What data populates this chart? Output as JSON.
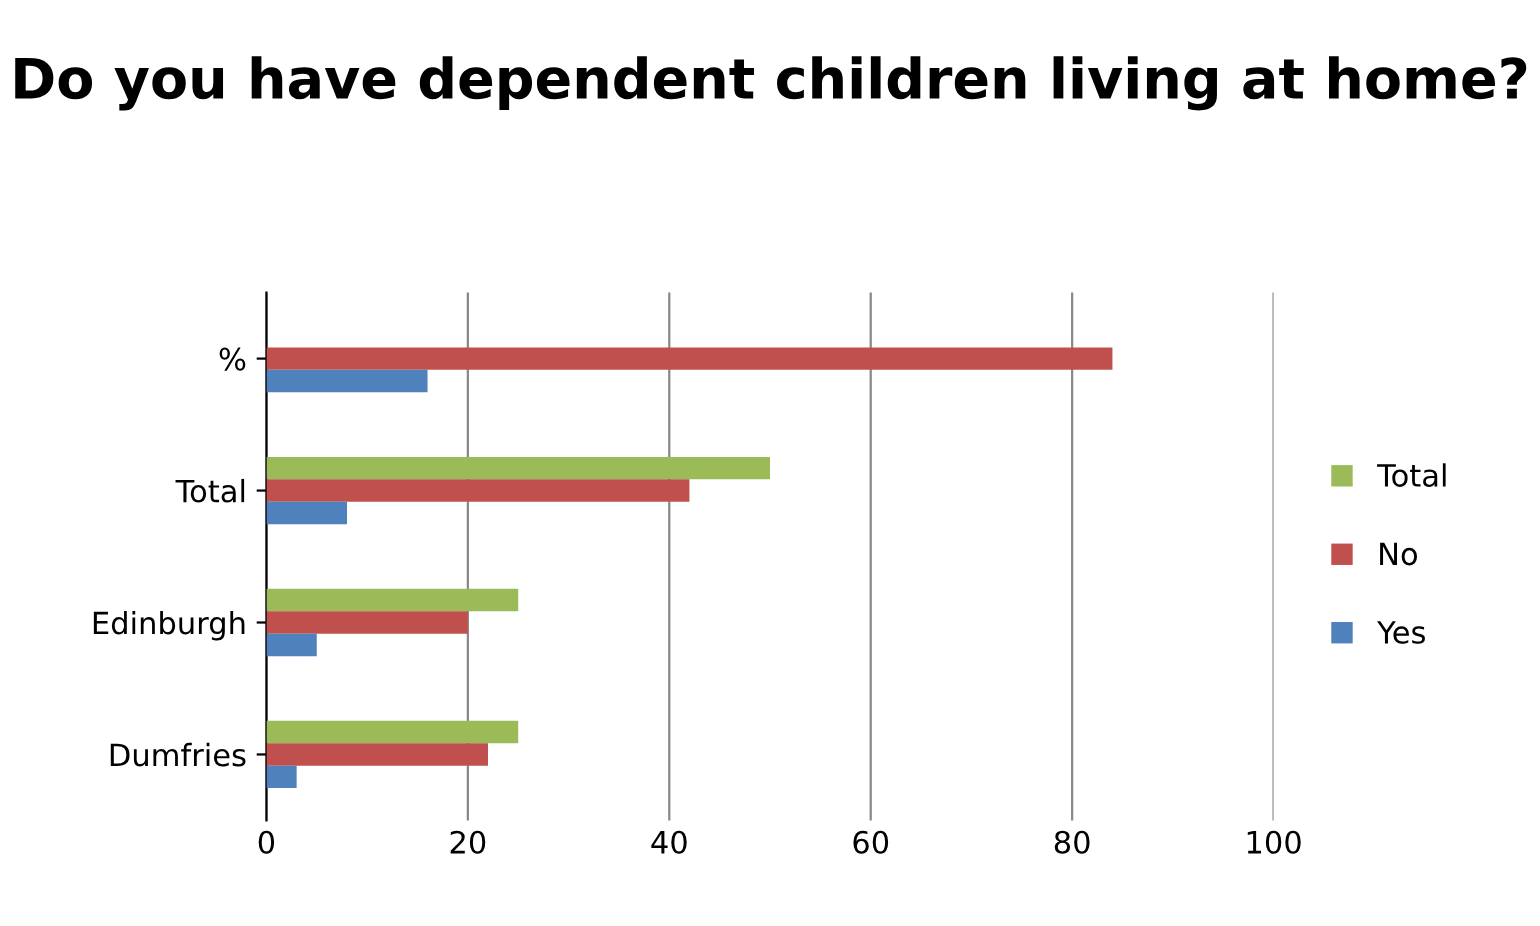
{
  "chart_data": {
    "type": "bar",
    "orientation": "horizontal",
    "title": "Do you have dependent children living at home?",
    "categories": [
      "%",
      "Total",
      "Edinburgh",
      "Dumfries"
    ],
    "series": [
      {
        "name": "Total",
        "color": "#9bbb59",
        "values": [
          null,
          50,
          25,
          25
        ]
      },
      {
        "name": "No",
        "color": "#c0504d",
        "values": [
          84,
          42,
          20,
          22
        ]
      },
      {
        "name": "Yes",
        "color": "#4f81bd",
        "values": [
          16,
          8,
          5,
          3
        ]
      }
    ],
    "xlim": [
      0,
      100
    ],
    "xticks": [
      0,
      20,
      40,
      60,
      80,
      100
    ],
    "grid": "x",
    "legend": "right"
  }
}
